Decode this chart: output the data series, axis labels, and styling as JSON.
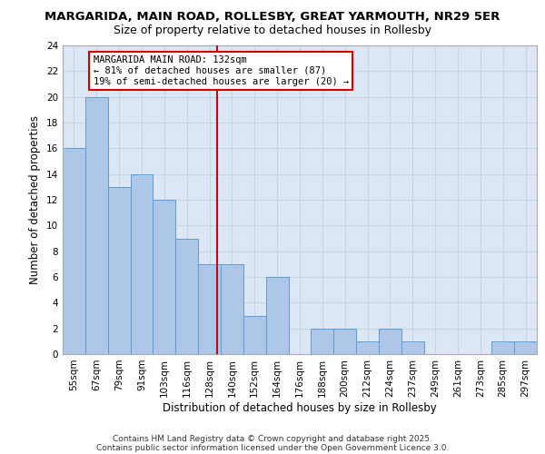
{
  "title1": "MARGARIDA, MAIN ROAD, ROLLESBY, GREAT YARMOUTH, NR29 5ER",
  "title2": "Size of property relative to detached houses in Rollesby",
  "xlabel": "Distribution of detached houses by size in Rollesby",
  "ylabel": "Number of detached properties",
  "bins": [
    "55sqm",
    "67sqm",
    "79sqm",
    "91sqm",
    "103sqm",
    "116sqm",
    "128sqm",
    "140sqm",
    "152sqm",
    "164sqm",
    "176sqm",
    "188sqm",
    "200sqm",
    "212sqm",
    "224sqm",
    "237sqm",
    "249sqm",
    "261sqm",
    "273sqm",
    "285sqm",
    "297sqm"
  ],
  "values": [
    16,
    20,
    13,
    14,
    12,
    9,
    7,
    7,
    3,
    6,
    0,
    2,
    2,
    1,
    2,
    1,
    0,
    0,
    0,
    1,
    1
  ],
  "bar_color": "#aec6e8",
  "bar_edge_color": "#5b9bd5",
  "bar_width": 1.0,
  "grid_color": "#c8d4e8",
  "bg_color": "#dce6f5",
  "vline_color": "#cc0000",
  "annotation_text": "MARGARIDA MAIN ROAD: 132sqm\n← 81% of detached houses are smaller (87)\n19% of semi-detached houses are larger (20) →",
  "annotation_box_color": "#cc0000",
  "ylim": [
    0,
    24
  ],
  "yticks": [
    0,
    2,
    4,
    6,
    8,
    10,
    12,
    14,
    16,
    18,
    20,
    22,
    24
  ],
  "footer1": "Contains HM Land Registry data © Crown copyright and database right 2025.",
  "footer2": "Contains public sector information licensed under the Open Government Licence 3.0.",
  "title1_fontsize": 9.5,
  "title2_fontsize": 9,
  "xlabel_fontsize": 8.5,
  "ylabel_fontsize": 8.5,
  "tick_fontsize": 7.5,
  "footer_fontsize": 6.5,
  "annotation_fontsize": 7.5
}
